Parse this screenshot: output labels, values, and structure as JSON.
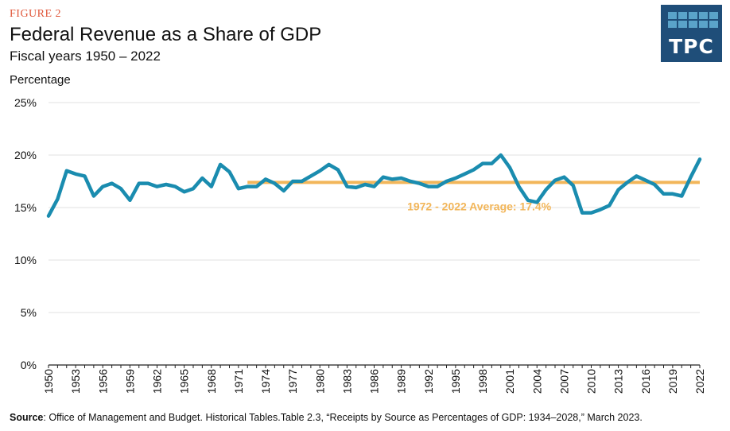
{
  "figure_label": "FIGURE 2",
  "title": "Federal Revenue as a Share of GDP",
  "subtitle": "Fiscal years 1950 – 2022",
  "logo_text": "TPC",
  "source_label": "Source",
  "source_text": ": Office of Management and Budget. Historical Tables.Table 2.3, “Receipts by Source as Percentages of GDP: 1934–2028,” March 2023.",
  "colors": {
    "line": "#1a8caf",
    "average": "#f2b65a",
    "figure_label": "#e0573a",
    "logo_bg": "#1f4e79"
  },
  "chart_data": {
    "type": "line",
    "ylabel": "Percentage",
    "ylim": [
      0,
      25
    ],
    "yticks": [
      "0%",
      "5%",
      "10%",
      "15%",
      "20%",
      "25%"
    ],
    "yticks_values": [
      0,
      5,
      10,
      15,
      20,
      25
    ],
    "xticks": [
      1950,
      1953,
      1956,
      1959,
      1962,
      1965,
      1968,
      1971,
      1974,
      1977,
      1980,
      1983,
      1986,
      1989,
      1992,
      1995,
      1998,
      2001,
      2004,
      2007,
      2010,
      2013,
      2016,
      2019,
      2022
    ],
    "xlim": [
      1950,
      2022
    ],
    "grid": true,
    "x": [
      1950,
      1951,
      1952,
      1953,
      1954,
      1955,
      1956,
      1957,
      1958,
      1959,
      1960,
      1961,
      1962,
      1963,
      1964,
      1965,
      1966,
      1967,
      1968,
      1969,
      1970,
      1971,
      1972,
      1973,
      1974,
      1975,
      1976,
      1977,
      1978,
      1979,
      1980,
      1981,
      1982,
      1983,
      1984,
      1985,
      1986,
      1987,
      1988,
      1989,
      1990,
      1991,
      1992,
      1993,
      1994,
      1995,
      1996,
      1997,
      1998,
      1999,
      2000,
      2001,
      2002,
      2003,
      2004,
      2005,
      2006,
      2007,
      2008,
      2009,
      2010,
      2011,
      2012,
      2013,
      2014,
      2015,
      2016,
      2017,
      2018,
      2019,
      2020,
      2021,
      2022
    ],
    "series": [
      {
        "values": [
          14.2,
          15.8,
          18.5,
          18.2,
          18.0,
          16.1,
          17.0,
          17.3,
          16.8,
          15.7,
          17.3,
          17.3,
          17.0,
          17.2,
          17.0,
          16.5,
          16.8,
          17.8,
          17.0,
          19.1,
          18.4,
          16.8,
          17.0,
          17.0,
          17.7,
          17.3,
          16.6,
          17.5,
          17.5,
          18.0,
          18.5,
          19.1,
          18.6,
          17.0,
          16.9,
          17.2,
          17.0,
          17.9,
          17.7,
          17.8,
          17.5,
          17.3,
          17.0,
          17.0,
          17.5,
          17.8,
          18.2,
          18.6,
          19.2,
          19.2,
          20.0,
          18.8,
          17.0,
          15.7,
          15.5,
          16.7,
          17.6,
          17.9,
          17.1,
          14.5,
          14.5,
          14.8,
          15.2,
          16.7,
          17.4,
          18.0,
          17.6,
          17.2,
          16.3,
          16.3,
          16.1,
          17.9,
          19.6
        ]
      }
    ],
    "average": {
      "label": "1972 - 2022 Average: 17.4%",
      "value": 17.4,
      "x_start": 1972,
      "x_end": 2022
    }
  }
}
